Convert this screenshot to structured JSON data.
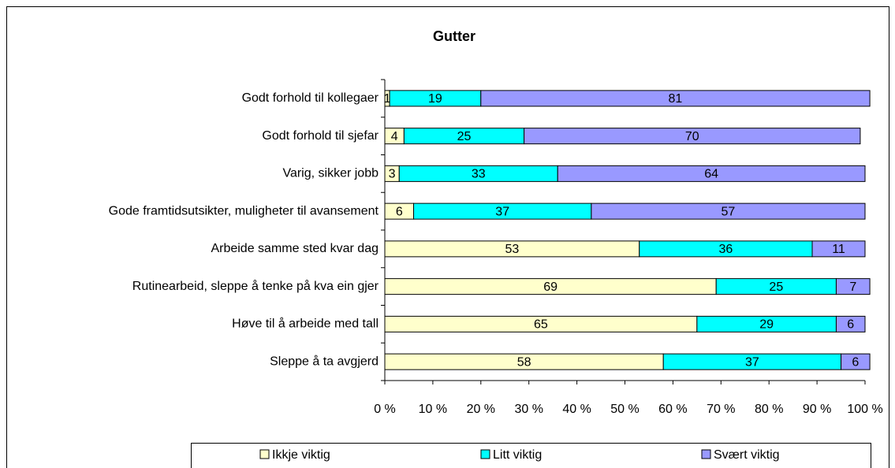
{
  "chart_data": {
    "type": "bar",
    "orientation": "horizontal",
    "stacked": true,
    "title": "Gutter",
    "categories": [
      "Godt forhold til kollegaer",
      "Godt forhold til sjefar",
      "Varig, sikker jobb",
      "Gode framtidsutsikter, muligheter til avansement",
      "Arbeide samme sted kvar dag",
      "Rutinearbeid, sleppe å tenke på kva ein gjer",
      "Høve til å arbeide med tall",
      "Sleppe å ta avgjerd"
    ],
    "series": [
      {
        "name": "Ikkje viktig",
        "color": "#ffffcc",
        "values": [
          1,
          4,
          3,
          6,
          53,
          69,
          65,
          58
        ]
      },
      {
        "name": "Litt viktig",
        "color": "#00ffff",
        "values": [
          19,
          25,
          33,
          37,
          36,
          25,
          29,
          37
        ]
      },
      {
        "name": "Svært viktig",
        "color": "#9999ff",
        "values": [
          81,
          70,
          64,
          57,
          11,
          7,
          6,
          6
        ]
      }
    ],
    "xlim": [
      0,
      100
    ],
    "xticks": [
      {
        "value": 0,
        "label": "0 %"
      },
      {
        "value": 10,
        "label": "10 %"
      },
      {
        "value": 20,
        "label": "20 %"
      },
      {
        "value": 30,
        "label": "30 %"
      },
      {
        "value": 40,
        "label": "40 %"
      },
      {
        "value": 50,
        "label": "50 %"
      },
      {
        "value": 60,
        "label": "60 %"
      },
      {
        "value": 70,
        "label": "70 %"
      },
      {
        "value": 80,
        "label": "80 %"
      },
      {
        "value": 90,
        "label": "90 %"
      },
      {
        "value": 100,
        "label": "100 %"
      }
    ],
    "legend": "bottom"
  }
}
